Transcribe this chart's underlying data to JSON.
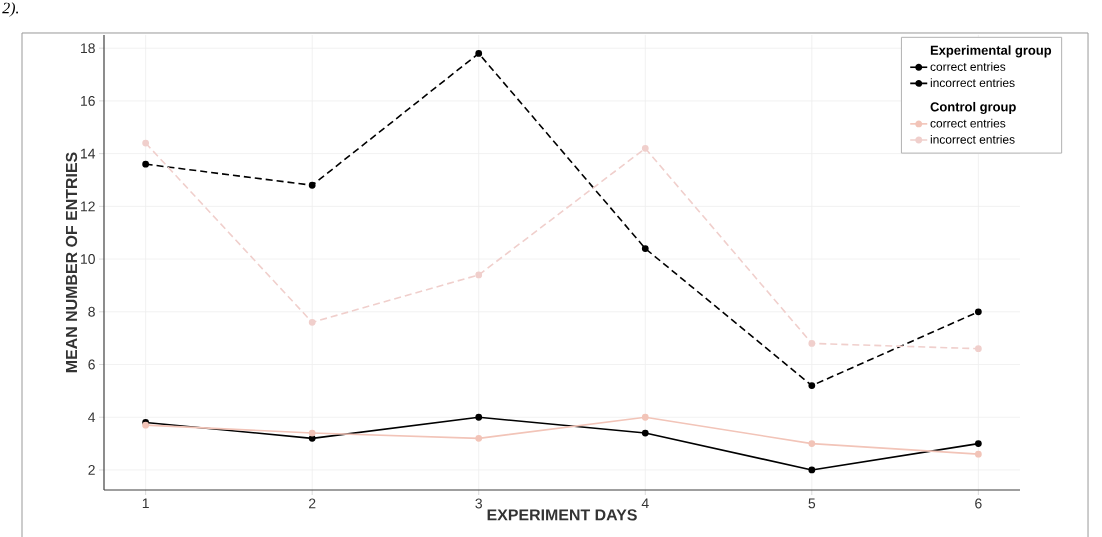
{
  "chart_data": {
    "type": "line",
    "xlabel": "EXPERIMENT DAYS",
    "ylabel": "MEAN NUMBER OF  ENTRIES",
    "annotations": [
      "2).",
      "Experimental group",
      "Control group"
    ],
    "x": [
      1,
      2,
      3,
      4,
      5,
      6
    ],
    "series": [
      {
        "name": "correct entries",
        "color": "#000000",
        "line_style": "solid",
        "values": [
          3.8,
          3.2,
          4.0,
          3.4,
          2.0,
          3.0
        ]
      },
      {
        "name": "incorrect entries",
        "color": "#000000",
        "line_style": "dashed",
        "values": [
          13.6,
          12.8,
          17.8,
          10.4,
          5.2,
          8.0
        ]
      },
      {
        "name": "correct entries",
        "color": "#f2c4b8",
        "line_style": "solid",
        "values": [
          3.7,
          3.4,
          3.2,
          4.0,
          3.0,
          2.6
        ]
      },
      {
        "name": "incorrect entries",
        "color": "#f0cfcc",
        "line_style": "dashed",
        "values": [
          14.4,
          7.6,
          9.4,
          14.2,
          6.8,
          6.6
        ]
      }
    ],
    "xlim": [
      0.75,
      6.25
    ],
    "ylim": [
      1.24,
      18.5
    ],
    "xticks": [
      1,
      2,
      3,
      4,
      5,
      6
    ],
    "yticks": [
      2,
      4,
      6,
      8,
      10,
      12,
      14,
      16,
      18
    ],
    "grid": true,
    "legend": "top right",
    "marker": "circle"
  }
}
